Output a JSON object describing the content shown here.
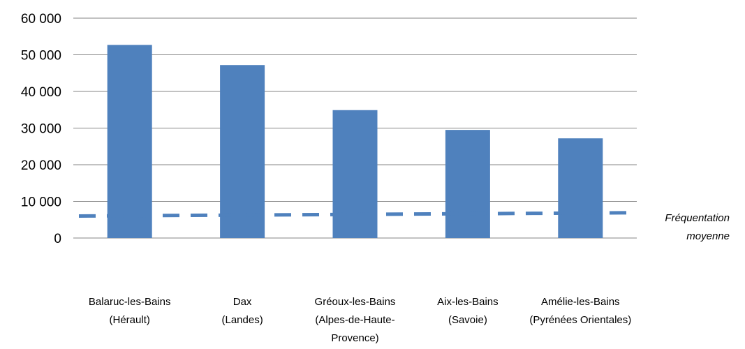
{
  "chart_data": {
    "type": "bar",
    "title": "",
    "xlabel": "",
    "ylabel": "",
    "ylim": [
      0,
      60000
    ],
    "yticks": [
      0,
      10000,
      20000,
      30000,
      40000,
      50000,
      60000
    ],
    "ytick_labels": [
      "0",
      "10 000",
      "20 000",
      "30 000",
      "40 000",
      "50 000",
      "60 000"
    ],
    "grid": "horizontal",
    "categories": [
      [
        "Balaruc-les-Bains",
        "(Hérault)"
      ],
      [
        "Dax",
        "(Landes)"
      ],
      [
        "Gréoux-les-Bains",
        "(Alpes-de-Haute-",
        "Provence)"
      ],
      [
        "Aix-les-Bains",
        "(Savoie)"
      ],
      [
        "Amélie-les-Bains",
        "(Pyrénées Orientales)"
      ]
    ],
    "values": [
      52700,
      47200,
      34900,
      29500,
      27200
    ],
    "bar_color": "#4f81bd",
    "average_line": {
      "label": [
        "Fréquentation",
        "moyenne"
      ],
      "start_value": 6000,
      "end_value": 6900,
      "style": "dashed",
      "color": "#4f81bd"
    }
  }
}
